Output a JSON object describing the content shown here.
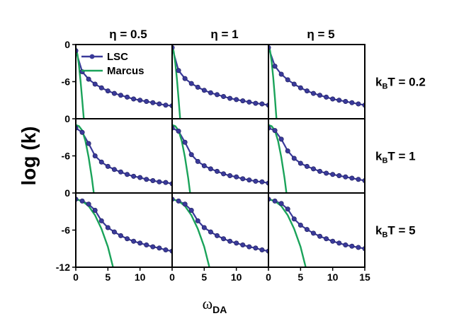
{
  "chart_data": {
    "type": "line",
    "title": "",
    "xlabel": "ω",
    "xlabel_sub": "DA",
    "ylabel": "log (k)",
    "x_range": [
      0,
      15
    ],
    "y_range": [
      -12,
      0
    ],
    "panel_y_range": [
      -12,
      0
    ],
    "grid": false,
    "legend_placement": "top-left panel, top-left",
    "colors": {
      "LSC": "#3a3a9a",
      "Marcus": "#1aa35a",
      "frame": "#000000"
    },
    "x_tick_labels": [
      "0",
      "5",
      "10",
      "15"
    ],
    "x_tick_values": [
      0,
      5,
      10,
      15
    ],
    "y_tick_labels": [
      "0",
      "-6",
      "-12"
    ],
    "y_tick_values": [
      0,
      -6,
      -12
    ],
    "columns": [
      {
        "label": "η = 0.5",
        "eta": 0.5
      },
      {
        "label": "η = 1",
        "eta": 1
      },
      {
        "label": "η = 5",
        "eta": 5
      }
    ],
    "rows": [
      {
        "label_main": "k",
        "label_sub": "B",
        "label_tail": "T = 0.2",
        "kBT": 0.2
      },
      {
        "label_main": "k",
        "label_sub": "B",
        "label_tail": "T = 1",
        "kBT": 1
      },
      {
        "label_main": "k",
        "label_sub": "B",
        "label_tail": "T = 5",
        "kBT": 5
      }
    ],
    "legend": [
      {
        "name": "LSC",
        "marker": "circle"
      },
      {
        "name": "Marcus",
        "marker": "none"
      }
    ],
    "panels": [
      {
        "row": 0,
        "col": 0,
        "LSC": {
          "x": [
            0,
            1,
            2,
            3,
            4,
            5,
            6,
            7,
            8,
            9,
            10,
            11,
            12,
            13,
            14,
            15
          ],
          "y": [
            -1,
            -4.4,
            -5.6,
            -6.4,
            -7.0,
            -7.5,
            -7.9,
            -8.2,
            -8.5,
            -8.8,
            -9.0,
            -9.2,
            -9.4,
            -9.6,
            -9.8,
            -9.9
          ]
        },
        "Marcus": {
          "x": [
            0,
            0.25,
            0.5,
            0.75,
            1.0,
            1.25
          ],
          "y": [
            -0.5,
            -1.6,
            -3.4,
            -6.0,
            -9.0,
            -12
          ]
        }
      },
      {
        "row": 0,
        "col": 1,
        "LSC": {
          "x": [
            0,
            1,
            2,
            3,
            4,
            5,
            6,
            7,
            8,
            9,
            10,
            11,
            12,
            13,
            14,
            15
          ],
          "y": [
            -0.5,
            -4.2,
            -5.5,
            -6.3,
            -6.9,
            -7.4,
            -7.8,
            -8.1,
            -8.4,
            -8.7,
            -8.9,
            -9.1,
            -9.3,
            -9.5,
            -9.6,
            -9.8
          ]
        },
        "Marcus": {
          "x": [
            0,
            0.25,
            0.5,
            0.75,
            1.0,
            1.25
          ],
          "y": [
            0,
            -1.2,
            -3.0,
            -5.6,
            -8.8,
            -12
          ]
        }
      },
      {
        "row": 0,
        "col": 2,
        "LSC": {
          "x": [
            0,
            1,
            2,
            3,
            4,
            5,
            6,
            7,
            8,
            9,
            10,
            11,
            12,
            13,
            14,
            15
          ],
          "y": [
            -0.5,
            -3.5,
            -4.8,
            -5.7,
            -6.4,
            -7.0,
            -7.5,
            -7.9,
            -8.2,
            -8.5,
            -8.8,
            -9.0,
            -9.2,
            -9.4,
            -9.6,
            -9.8
          ]
        },
        "Marcus": {
          "x": [
            0,
            0.25,
            0.5,
            0.75,
            1.0,
            1.25
          ],
          "y": [
            0,
            -1.0,
            -2.8,
            -5.4,
            -8.6,
            -12
          ]
        }
      },
      {
        "row": 1,
        "col": 0,
        "LSC": {
          "x": [
            0,
            1,
            2,
            3,
            4,
            5,
            6,
            7,
            8,
            9,
            10,
            11,
            12,
            13,
            14,
            15
          ],
          "y": [
            -1.5,
            -2.2,
            -4.0,
            -6.0,
            -7.0,
            -7.7,
            -8.2,
            -8.6,
            -9.0,
            -9.3,
            -9.5,
            -9.8,
            -10.0,
            -10.2,
            -10.3,
            -10.5
          ]
        },
        "Marcus": {
          "x": [
            0,
            0.5,
            1,
            1.5,
            2,
            2.5,
            2.8
          ],
          "y": [
            -1.0,
            -1.2,
            -1.9,
            -3.6,
            -6.2,
            -9.6,
            -12
          ]
        }
      },
      {
        "row": 1,
        "col": 1,
        "LSC": {
          "x": [
            0,
            1,
            2,
            3,
            4,
            5,
            6,
            7,
            8,
            9,
            10,
            11,
            12,
            13,
            14,
            15
          ],
          "y": [
            -1.5,
            -2.0,
            -3.8,
            -5.8,
            -6.9,
            -7.6,
            -8.1,
            -8.5,
            -8.9,
            -9.2,
            -9.4,
            -9.7,
            -9.9,
            -10.1,
            -10.2,
            -10.4
          ]
        },
        "Marcus": {
          "x": [
            0,
            0.5,
            1,
            1.5,
            2,
            2.5,
            2.8
          ],
          "y": [
            -1.0,
            -1.2,
            -1.9,
            -3.6,
            -6.2,
            -9.6,
            -12
          ]
        }
      },
      {
        "row": 1,
        "col": 2,
        "LSC": {
          "x": [
            0,
            1,
            2,
            3,
            4,
            5,
            6,
            7,
            8,
            9,
            10,
            11,
            12,
            13,
            14,
            15
          ],
          "y": [
            -1.5,
            -1.9,
            -3.3,
            -5.2,
            -6.4,
            -7.2,
            -7.7,
            -8.1,
            -8.5,
            -8.8,
            -9.0,
            -9.2,
            -9.4,
            -9.6,
            -9.8,
            -10.0
          ]
        },
        "Marcus": {
          "x": [
            0,
            0.5,
            1,
            1.5,
            2,
            2.5,
            2.8
          ],
          "y": [
            -1.0,
            -1.2,
            -1.9,
            -3.6,
            -6.2,
            -9.6,
            -12
          ]
        }
      },
      {
        "row": 2,
        "col": 0,
        "LSC": {
          "x": [
            0,
            1,
            2,
            3,
            4,
            5,
            6,
            7,
            8,
            9,
            10,
            11,
            12,
            13,
            14,
            15
          ],
          "y": [
            -1.0,
            -1.3,
            -1.8,
            -2.8,
            -4.5,
            -5.6,
            -6.3,
            -6.9,
            -7.4,
            -7.8,
            -8.1,
            -8.4,
            -8.7,
            -8.9,
            -9.2,
            -9.4
          ]
        },
        "Marcus": {
          "x": [
            0,
            1,
            2,
            3,
            4,
            5,
            5.8
          ],
          "y": [
            -1.0,
            -1.3,
            -2.1,
            -3.6,
            -5.8,
            -8.7,
            -12
          ]
        }
      },
      {
        "row": 2,
        "col": 1,
        "LSC": {
          "x": [
            0,
            1,
            2,
            3,
            4,
            5,
            6,
            7,
            8,
            9,
            10,
            11,
            12,
            13,
            14,
            15
          ],
          "y": [
            -1.0,
            -1.3,
            -1.8,
            -2.8,
            -4.5,
            -5.6,
            -6.3,
            -6.9,
            -7.4,
            -7.8,
            -8.1,
            -8.4,
            -8.7,
            -8.9,
            -9.2,
            -9.4
          ]
        },
        "Marcus": {
          "x": [
            0,
            1,
            2,
            3,
            4,
            5,
            5.8
          ],
          "y": [
            -1.0,
            -1.3,
            -2.1,
            -3.6,
            -5.8,
            -8.7,
            -12
          ]
        }
      },
      {
        "row": 2,
        "col": 2,
        "LSC": {
          "x": [
            0,
            1,
            2,
            3,
            4,
            5,
            6,
            7,
            8,
            9,
            10,
            11,
            12,
            13,
            14,
            15
          ],
          "y": [
            -1.0,
            -1.3,
            -1.7,
            -2.6,
            -4.2,
            -5.2,
            -5.9,
            -6.5,
            -7.0,
            -7.4,
            -7.8,
            -8.1,
            -8.4,
            -8.6,
            -8.8,
            -9.0
          ]
        },
        "Marcus": {
          "x": [
            0,
            1,
            2,
            3,
            4,
            5,
            5.8
          ],
          "y": [
            -1.0,
            -1.3,
            -2.1,
            -3.6,
            -5.8,
            -8.7,
            -12
          ]
        }
      }
    ]
  }
}
